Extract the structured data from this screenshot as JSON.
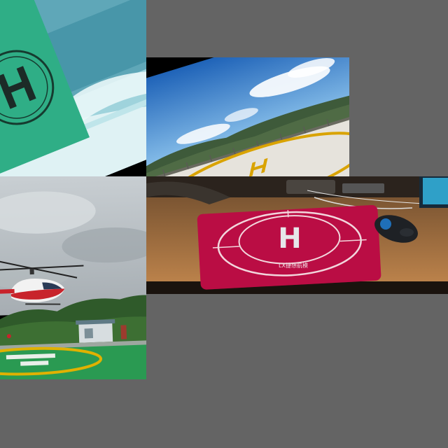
{
  "collage": {
    "background_color": "#646464",
    "tiles": [
      {
        "subject": "rotated-green-helipad-sign-over-balcony"
      },
      {
        "subject": "rooftop-helipad-with-mountains-and-sky"
      },
      {
        "subject": "helicopter-landing-on-green-helipad"
      },
      {
        "subject": "red-helipad-mousepad-on-desk"
      }
    ]
  },
  "mousepad": {
    "letter": "H",
    "brand": "ⅬⅩ捷想航模",
    "color": "#c8103a"
  },
  "helipad_green": {
    "letter": "H",
    "color": "#2a9a52"
  }
}
